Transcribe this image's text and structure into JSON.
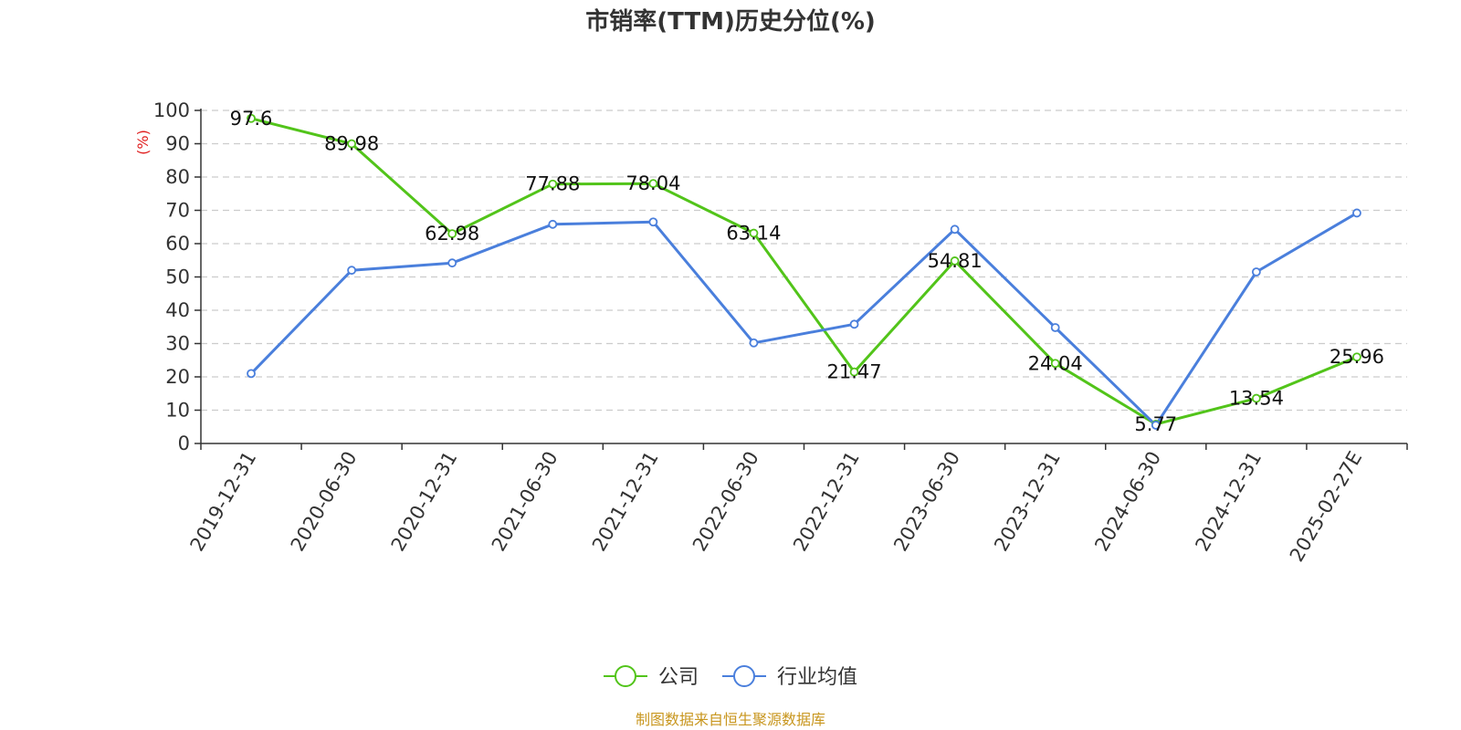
{
  "chart_data": {
    "type": "line",
    "title": "市销率(TTM)历史分位(%)",
    "ylabel": "(%)",
    "ylim": [
      0,
      100
    ],
    "yticks": [
      0,
      10,
      20,
      30,
      40,
      50,
      60,
      70,
      80,
      90,
      100
    ],
    "categories": [
      "2019-12-31",
      "2020-06-30",
      "2020-12-31",
      "2021-06-30",
      "2021-12-31",
      "2022-06-30",
      "2022-12-31",
      "2023-06-30",
      "2023-12-31",
      "2024-06-30",
      "2024-12-31",
      "2025-02-27E"
    ],
    "grid": true,
    "legend_position": "bottom-center",
    "series": [
      {
        "name": "公司",
        "color": "#52c41a",
        "values": [
          97.6,
          89.98,
          62.98,
          77.88,
          78.04,
          63.14,
          21.47,
          54.81,
          24.04,
          5.77,
          13.54,
          25.96
        ],
        "labels": [
          "97.6",
          "89.98",
          "62.98",
          "77.88",
          "78.04",
          "63.14",
          "21.47",
          "54.81",
          "24.04",
          "5.77",
          "13.54",
          "25.96"
        ]
      },
      {
        "name": "行业均值",
        "color": "#4a7fdc",
        "values": [
          21.0,
          52.0,
          54.2,
          65.8,
          66.5,
          30.2,
          35.8,
          64.3,
          34.8,
          5.5,
          51.5,
          69.2
        ]
      }
    ]
  },
  "source": "制图数据来自恒生聚源数据库",
  "colors": {
    "axis": "#333333",
    "grid": "#cccccc",
    "unit_label": "#e02020",
    "source": "#c8961e"
  }
}
